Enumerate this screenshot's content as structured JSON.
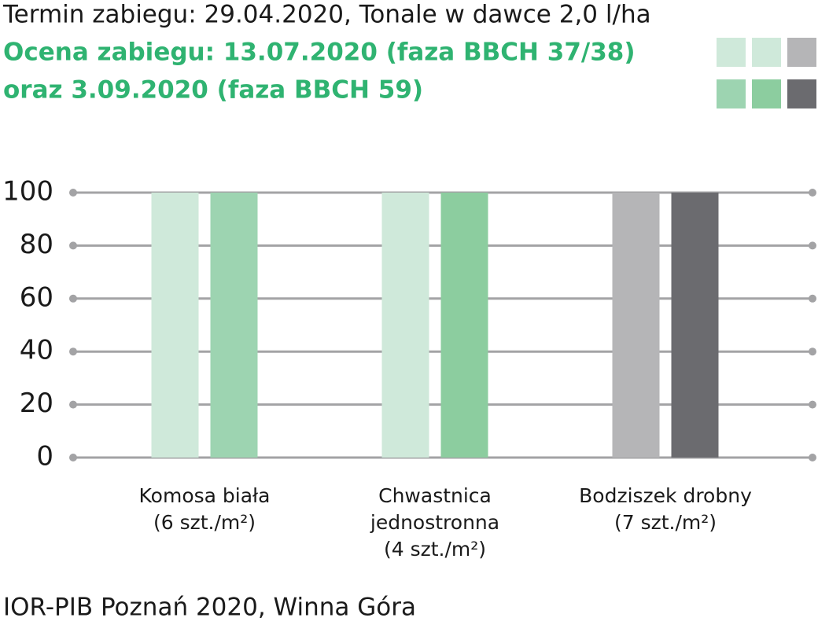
{
  "chart_data": {
    "type": "bar",
    "title": "Termin zabiegu: 29.04.2020, Tonale w dawce 2,0 l/ha",
    "subtitle": [
      "Ocena zabiegu: 13.07.2020 (faza BBCH 37/38)",
      "oraz 3.09.2020 (faza BBCH 59)"
    ],
    "categories": [
      [
        "Komosa biała",
        "(6 szt./m²)"
      ],
      [
        "Chwastnica",
        "jednostronna",
        "(4 szt./m²)"
      ],
      [
        "Bodziszek drobny",
        "(7 szt./m²)"
      ]
    ],
    "series": [
      {
        "colors": [
          "#cfe9da",
          "#cfe9da",
          "#b5b5b7"
        ],
        "values": [
          100,
          100,
          100
        ]
      },
      {
        "colors": [
          "#9dd4b1",
          "#8ccd9f",
          "#6b6b6f"
        ],
        "values": [
          100,
          100,
          100
        ]
      }
    ],
    "ylim": [
      0,
      100
    ],
    "yticks": [
      0,
      20,
      40,
      60,
      80,
      100
    ],
    "grid": true,
    "source": "IOR-PIB Poznań 2020, Winna Góra"
  }
}
